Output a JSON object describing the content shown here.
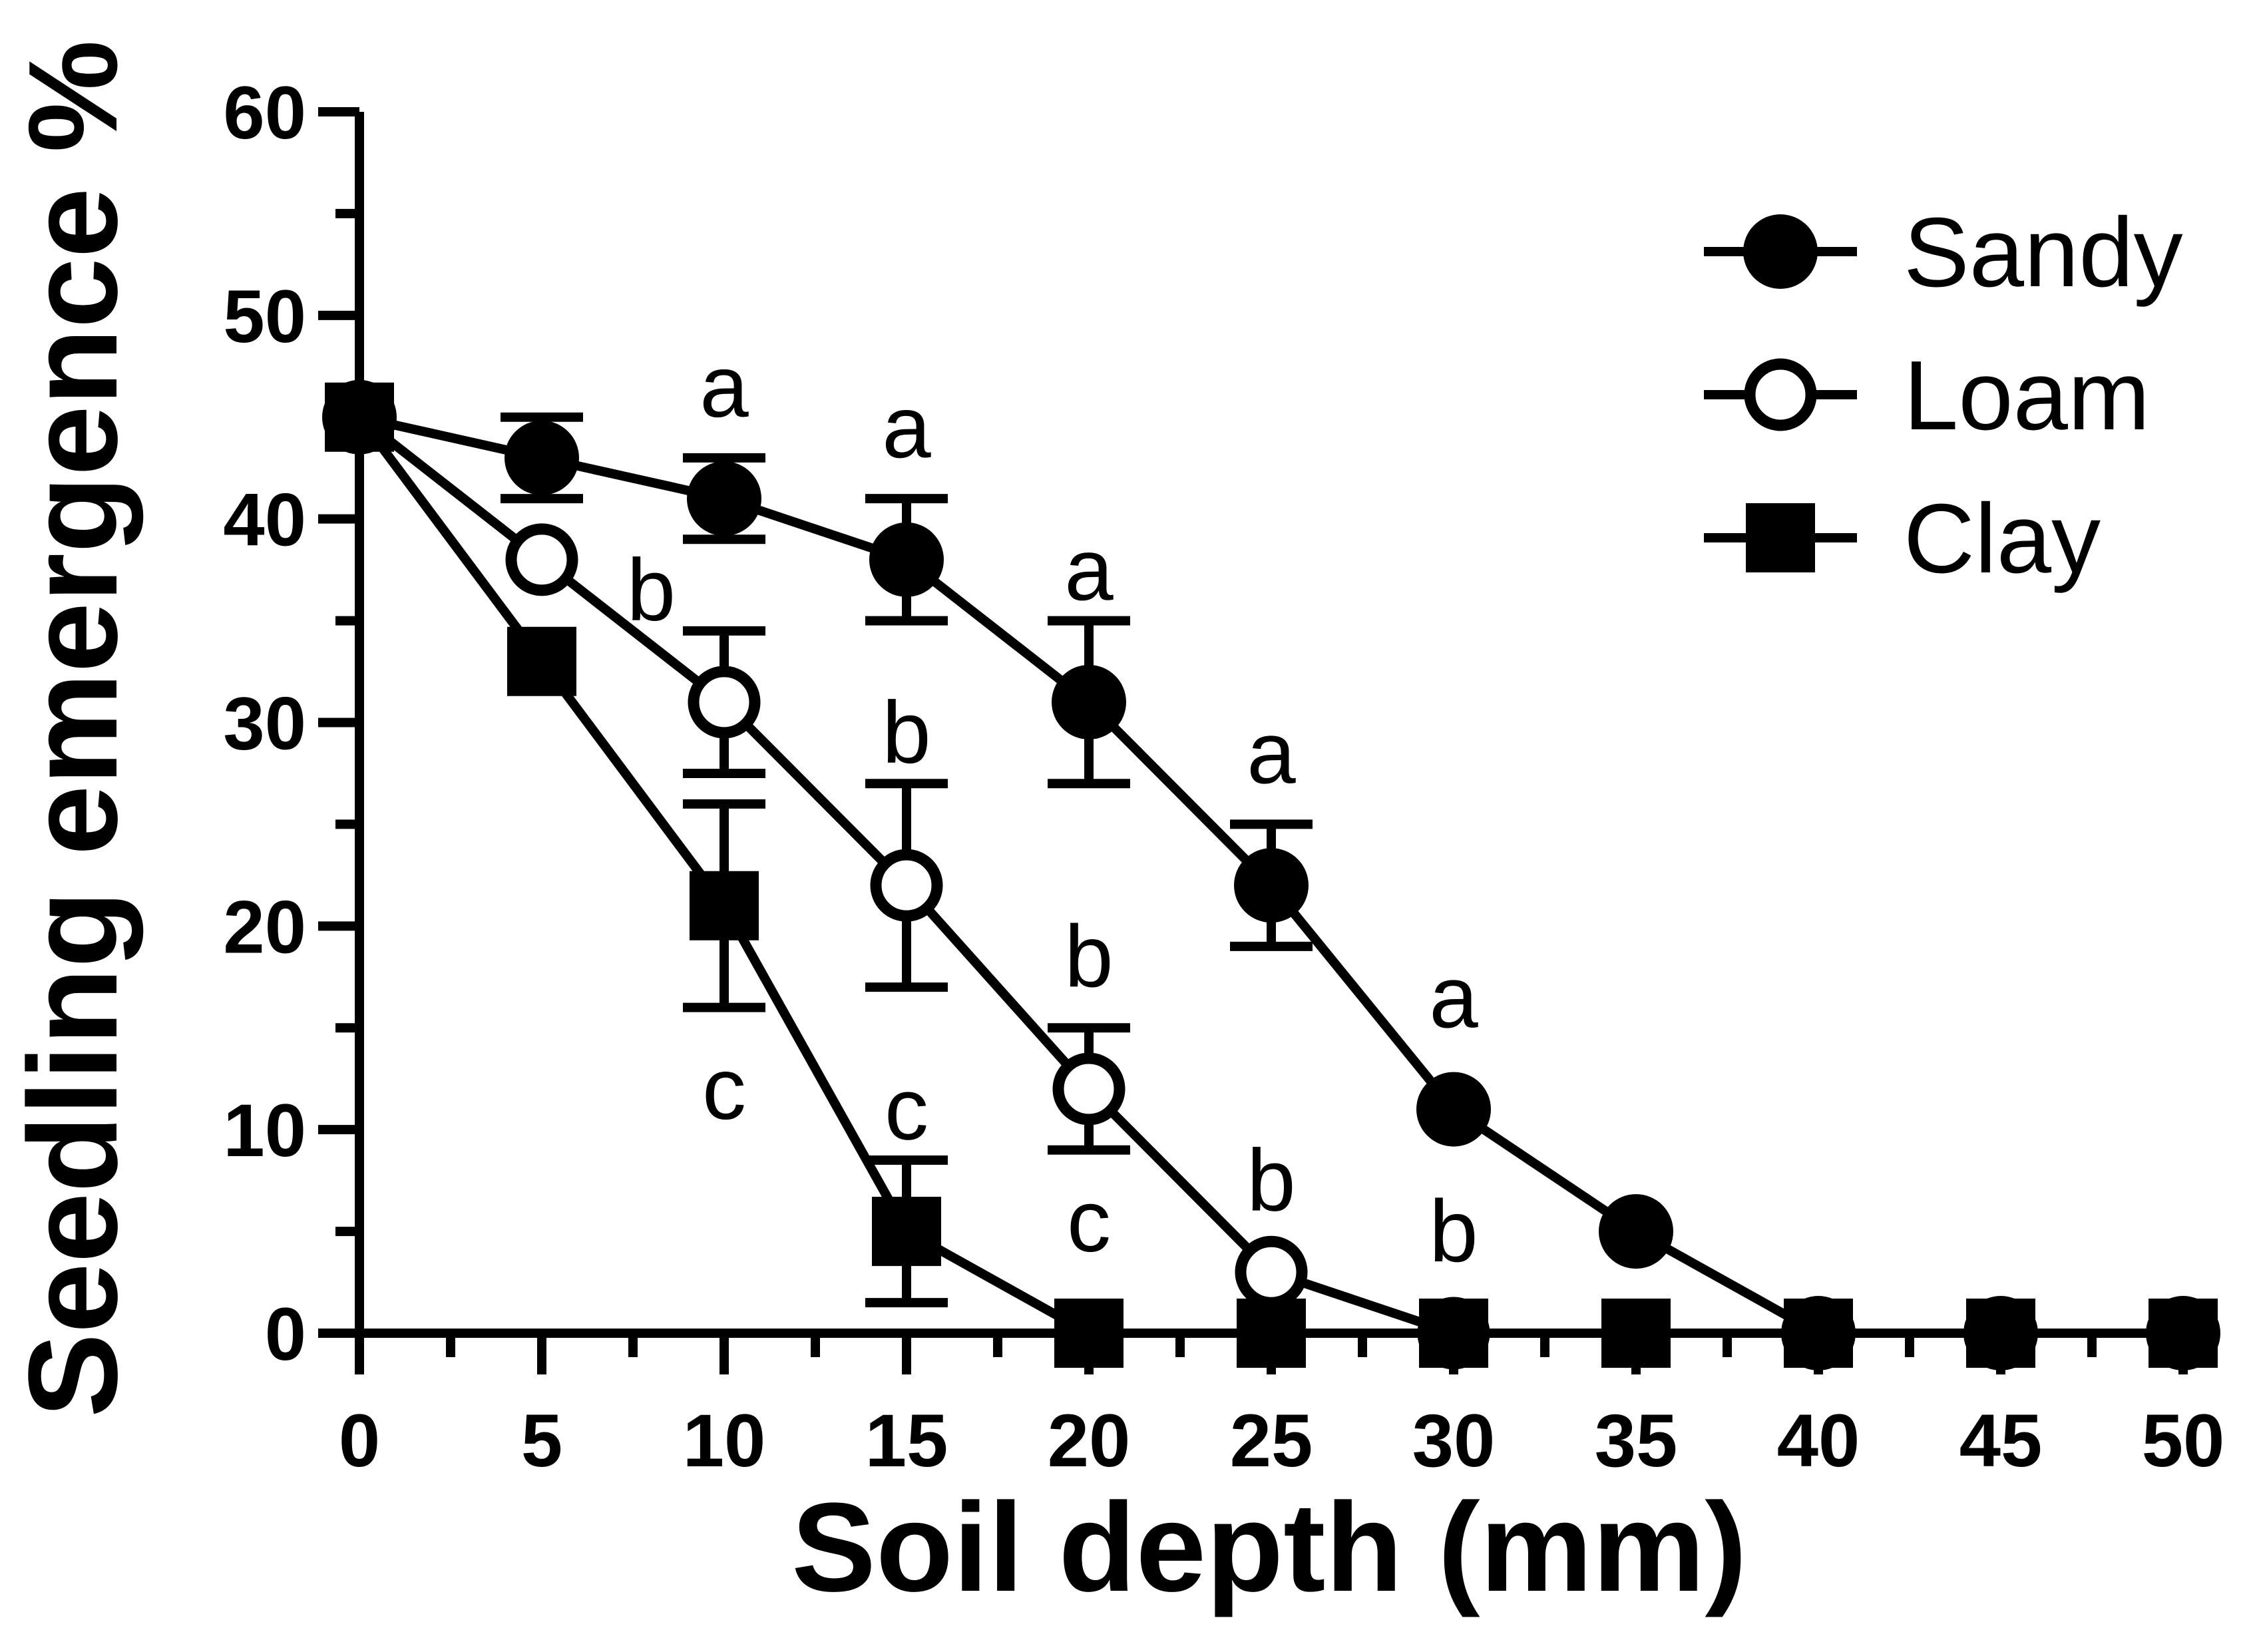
{
  "chart_data": {
    "type": "line",
    "xlabel": "Soil depth (mm)",
    "ylabel": "Seedling emergence %",
    "xlim": [
      0,
      50
    ],
    "ylim": [
      0,
      60
    ],
    "x_ticks": [
      "0",
      "5",
      "10",
      "15",
      "20",
      "25",
      "30",
      "35",
      "40",
      "45",
      "50"
    ],
    "y_ticks": [
      "0",
      "10",
      "20",
      "30",
      "40",
      "50",
      "60"
    ],
    "legend_position": "top-right",
    "grid": false,
    "series": [
      {
        "name": "Sandy",
        "marker": "filled-circle",
        "x": [
          0,
          5,
          10,
          15,
          20,
          25,
          30,
          35,
          40,
          45,
          50
        ],
        "y": [
          45,
          43,
          41,
          38,
          31,
          22,
          11,
          5,
          0,
          0,
          0
        ],
        "error": [
          0,
          2,
          2,
          3,
          4,
          3,
          0,
          0,
          0,
          0,
          0
        ]
      },
      {
        "name": "Loam",
        "marker": "open-circle",
        "x": [
          0,
          5,
          10,
          15,
          20,
          25,
          30
        ],
        "y": [
          45,
          38,
          31,
          22,
          12,
          3,
          0
        ],
        "error": [
          0,
          0,
          3.5,
          5,
          3,
          0,
          0
        ]
      },
      {
        "name": "Clay",
        "marker": "filled-square",
        "x": [
          0,
          5,
          10,
          15,
          20,
          25,
          30,
          35,
          40,
          45,
          50
        ],
        "y": [
          45,
          33,
          21,
          5,
          0,
          0,
          0,
          0,
          0,
          0,
          0
        ],
        "error": [
          0,
          0,
          5,
          3.5,
          0,
          0,
          0,
          0,
          0,
          0,
          0
        ]
      }
    ],
    "annotations": [
      {
        "text": "a",
        "x": 10,
        "y": 46.5
      },
      {
        "text": "a",
        "x": 15,
        "y": 44.5
      },
      {
        "text": "a",
        "x": 20,
        "y": 37.5
      },
      {
        "text": "a",
        "x": 25,
        "y": 28.5
      },
      {
        "text": "a",
        "x": 30,
        "y": 16.5
      },
      {
        "text": "b",
        "x": 8,
        "y": 36.5
      },
      {
        "text": "b",
        "x": 15,
        "y": 29.5
      },
      {
        "text": "b",
        "x": 20,
        "y": 18.5
      },
      {
        "text": "b",
        "x": 25,
        "y": 7.5
      },
      {
        "text": "b",
        "x": 30,
        "y": 5
      },
      {
        "text": "c",
        "x": 10,
        "y": 12
      },
      {
        "text": "c",
        "x": 15,
        "y": 11
      },
      {
        "text": "c",
        "x": 20,
        "y": 5.5
      }
    ]
  }
}
